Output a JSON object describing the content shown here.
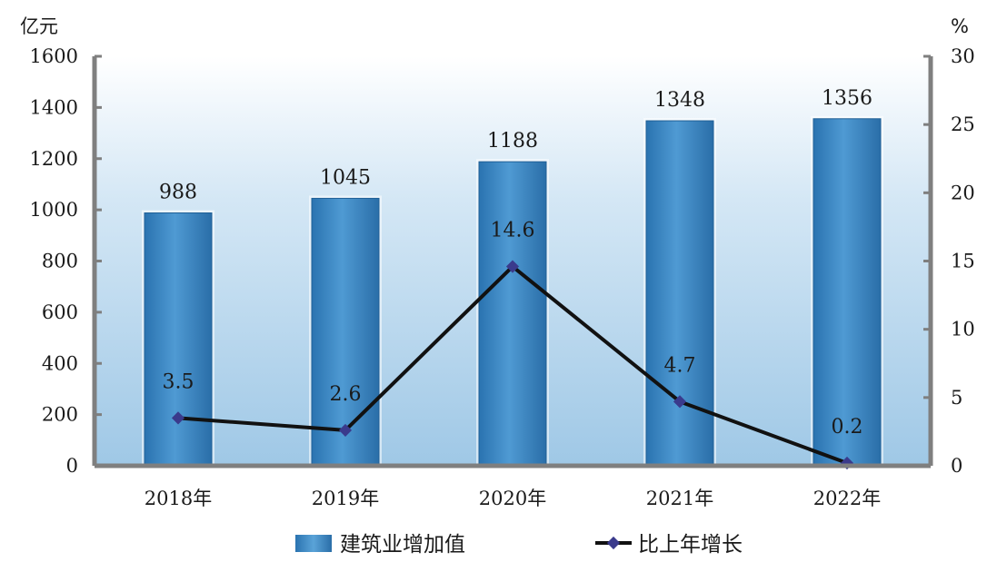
{
  "chart_data": {
    "type": "bar",
    "categories": [
      "2018年",
      "2019年",
      "2020年",
      "2021年",
      "2022年"
    ],
    "series": [
      {
        "name": "建筑业增加值",
        "type": "bar",
        "axis": "left",
        "values": [
          988,
          1045,
          1188,
          1348,
          1356
        ]
      },
      {
        "name": "比上年增长",
        "type": "line",
        "axis": "right",
        "values": [
          3.5,
          2.6,
          14.6,
          4.7,
          0.2
        ]
      }
    ],
    "bar_labels": [
      "988",
      "1045",
      "1188",
      "1348",
      "1356"
    ],
    "line_labels": [
      "3.5",
      "2.6",
      "14.6",
      "4.7",
      "0.2"
    ],
    "left_unit": "亿元",
    "right_unit": "%",
    "ylim": [
      0,
      1600
    ],
    "y2lim": [
      0,
      30
    ],
    "left_ticks": [
      "0",
      "200",
      "400",
      "600",
      "800",
      "1000",
      "1200",
      "1400",
      "1600"
    ],
    "right_ticks": [
      "0",
      "5",
      "10",
      "15",
      "20",
      "25",
      "30"
    ],
    "legend_position": "bottom",
    "colors": {
      "bar": "#3d88c4",
      "bar_edge": "#1f5f96",
      "line": "#111111",
      "marker": "#3a3a8c",
      "plot_bg_top": "#ffffff",
      "plot_bg_bottom": "#a9cde8",
      "axis": "#7f7f7f"
    }
  }
}
